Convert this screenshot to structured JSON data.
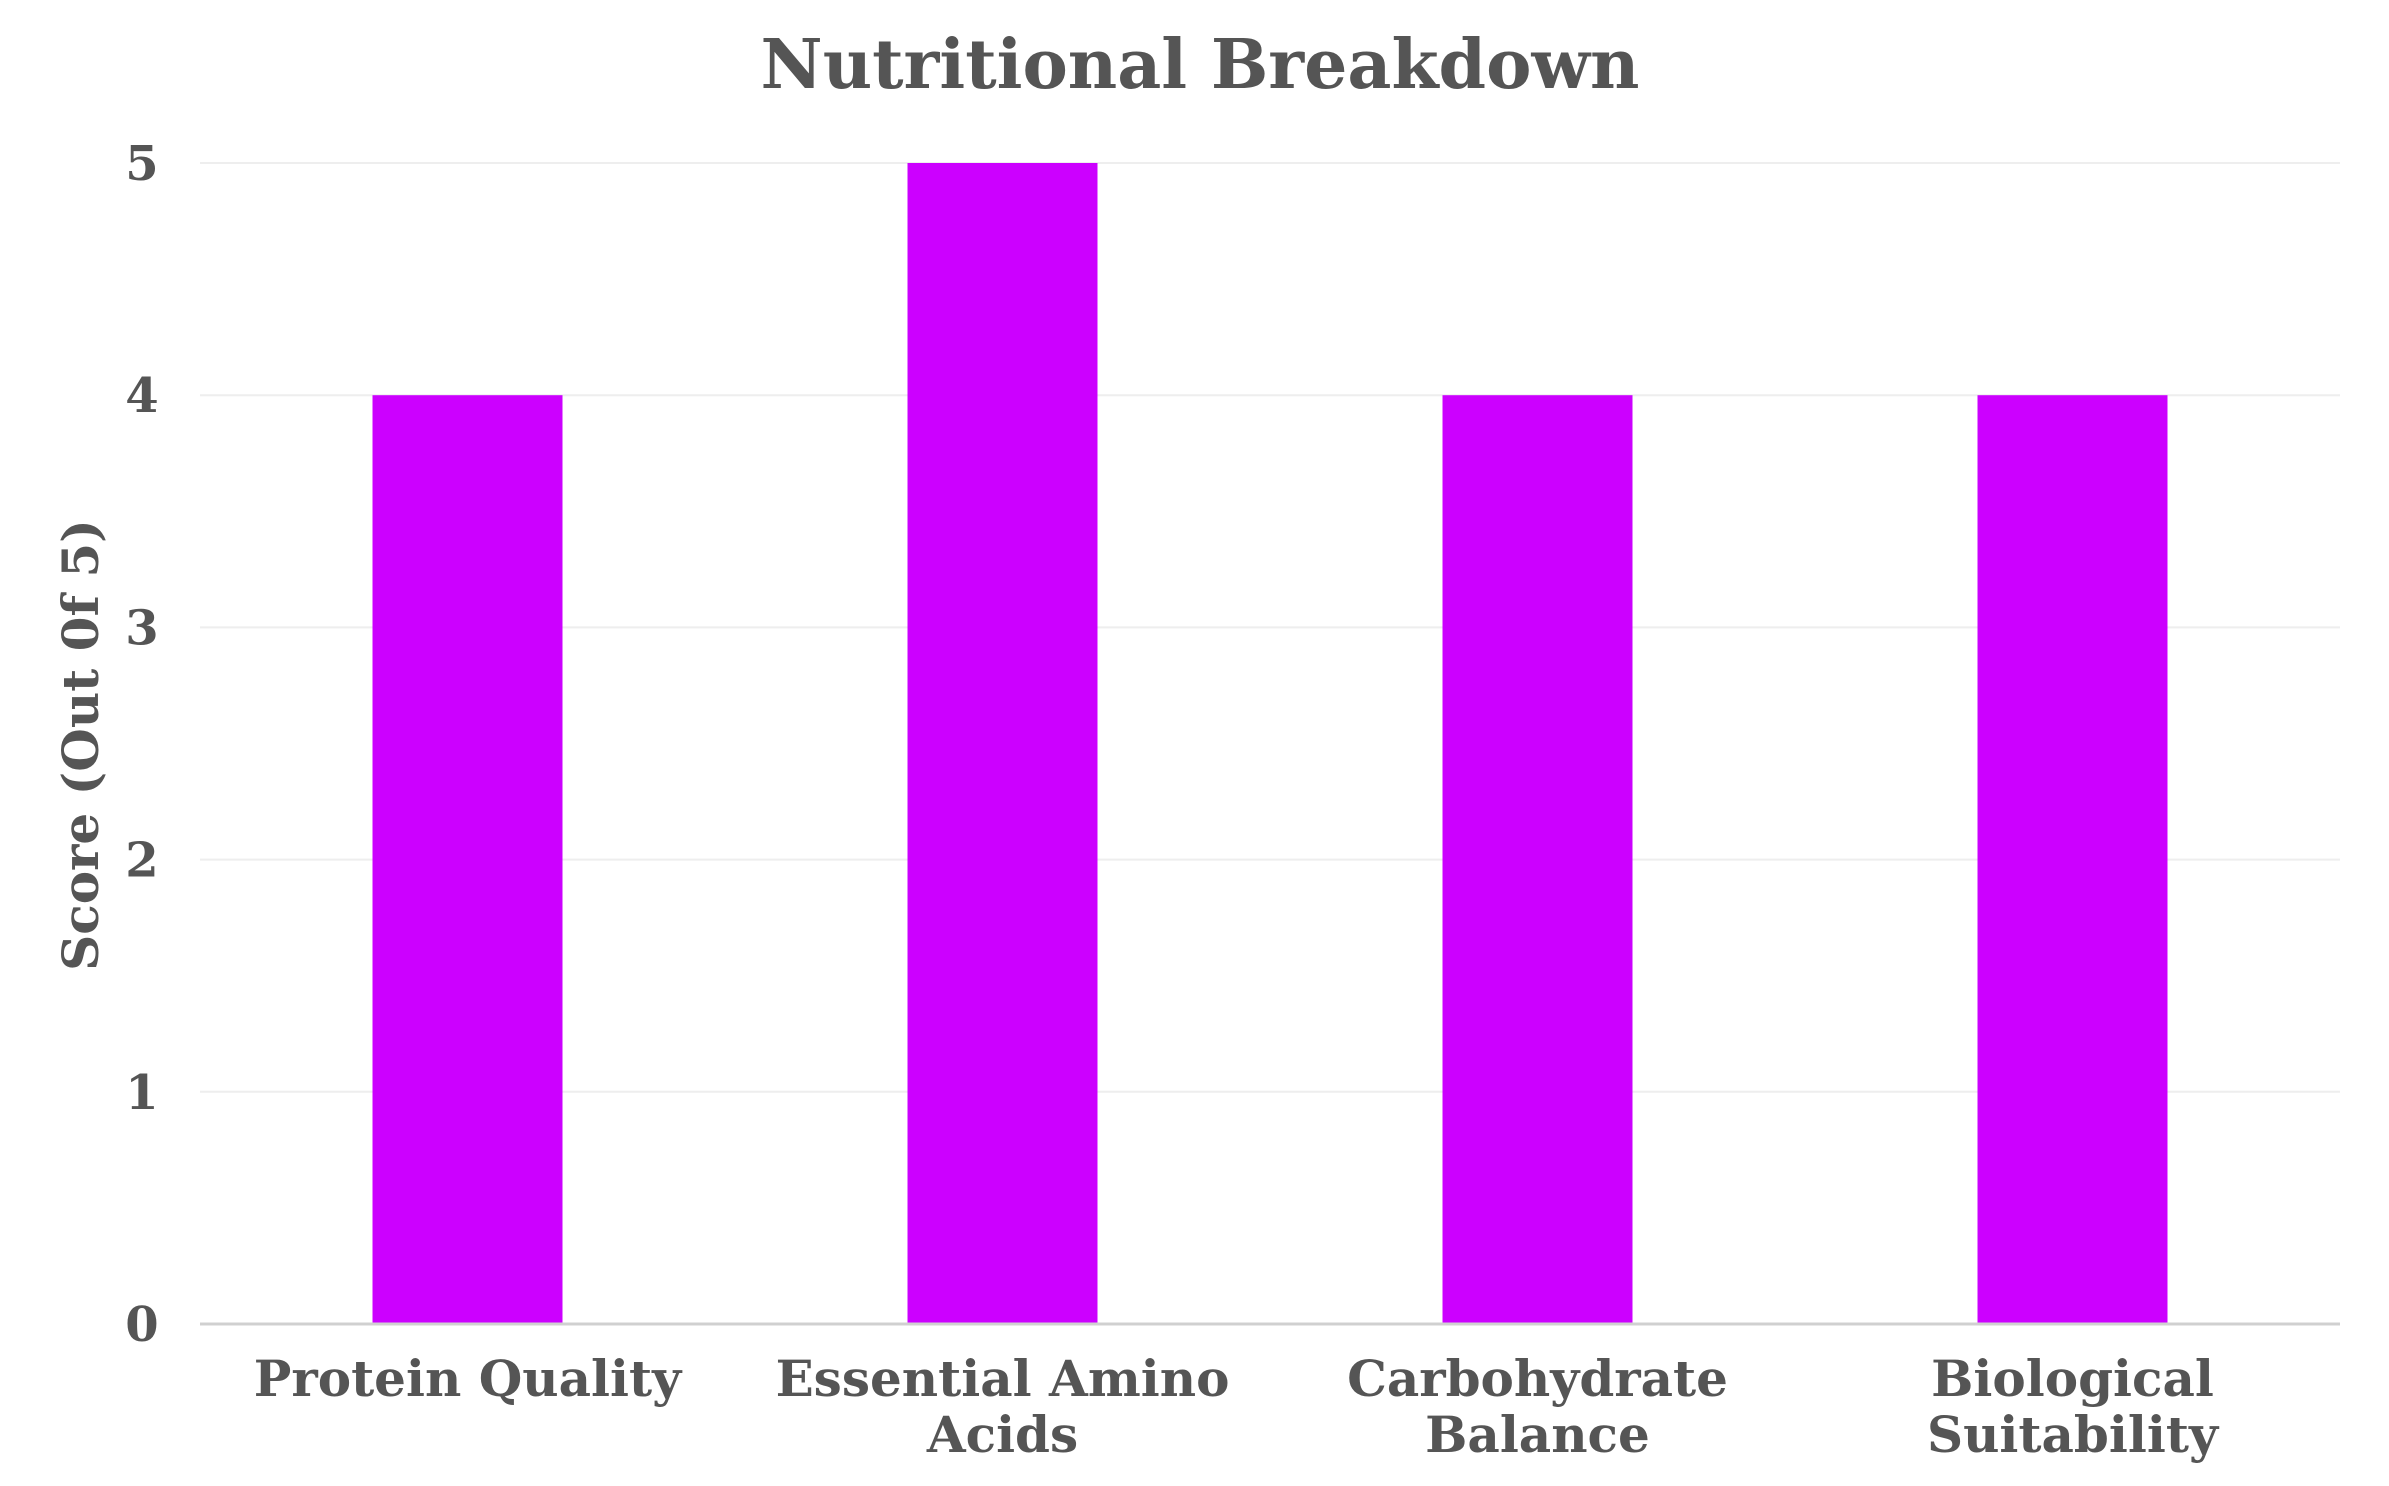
{
  "chart_data": {
    "type": "bar",
    "title": "Nutritional Breakdown",
    "xlabel": "",
    "ylabel": "Score (Out 0f 5)",
    "categories": [
      [
        "Protein Quality"
      ],
      [
        "Essential Amino",
        "Acids"
      ],
      [
        "Carbohydrate",
        "Balance"
      ],
      [
        "Biological",
        "Suitability"
      ]
    ],
    "series": [
      {
        "values": [
          4,
          5,
          4,
          4
        ],
        "color": "#cc00ff"
      }
    ],
    "ylim": [
      0,
      5
    ],
    "yticks": [
      "0",
      "1",
      "2",
      "3",
      "4",
      "5"
    ],
    "grid": true,
    "legend": "none"
  }
}
